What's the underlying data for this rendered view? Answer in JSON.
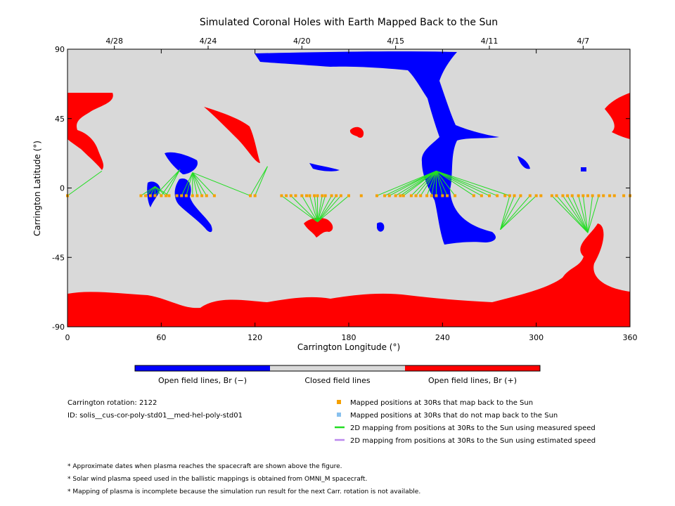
{
  "chart_data": {
    "type": "map",
    "title": "Simulated Coronal Holes with Earth Mapped Back to the Sun",
    "xlabel": "Carrington Longitude (°)",
    "ylabel": "Carrington Latitude (°)",
    "xlim": [
      0,
      360
    ],
    "ylim": [
      -90,
      90
    ],
    "x_ticks": [
      0,
      60,
      120,
      180,
      240,
      300,
      360
    ],
    "y_ticks": [
      90,
      45,
      0,
      -45,
      -90
    ],
    "top_axis_dates": [
      {
        "label": "4/28",
        "lon": 30
      },
      {
        "label": "4/24",
        "lon": 90
      },
      {
        "label": "4/20",
        "lon": 150
      },
      {
        "label": "4/15",
        "lon": 210
      },
      {
        "label": "4/11",
        "lon": 270
      },
      {
        "label": "4/7",
        "lon": 330
      }
    ],
    "colors": {
      "open_negative": "#0000ff",
      "closed": "#d9d9d9",
      "open_positive": "#ff0000",
      "measured_line": "#22dd22",
      "estimated_line": "#bb88ee",
      "mapped_point": "#f5a000",
      "unmapped_point": "#88c0ee"
    },
    "colorbar": {
      "labels": [
        "Open field lines, Br (−)",
        "Closed field lines",
        "Open field lines, Br (+)"
      ]
    },
    "mapped_positions_lon": [
      0,
      47,
      50,
      53,
      56,
      60,
      63,
      65,
      70,
      73,
      76,
      80,
      83,
      86,
      89,
      94,
      117,
      120,
      137,
      140,
      143,
      146,
      150,
      153,
      155,
      158,
      160,
      163,
      165,
      169,
      172,
      175,
      180,
      188,
      198,
      203,
      206,
      210,
      213,
      215,
      220,
      223,
      226,
      230,
      233,
      236,
      240,
      243,
      248,
      260,
      265,
      270,
      275,
      280,
      283,
      286,
      290,
      296,
      300,
      303,
      310,
      313,
      317,
      320,
      323,
      327,
      330,
      333,
      336,
      340,
      343,
      347,
      350,
      356,
      360
    ],
    "mapped_lat": -5,
    "footpoint_groups": [
      {
        "foot": [
          22,
          11
        ],
        "sources": [
          0
        ]
      },
      {
        "foot": [
          56,
          1
        ],
        "sources": [
          47,
          50,
          53,
          56,
          60,
          63,
          65
        ]
      },
      {
        "foot": [
          72,
          12
        ],
        "sources": [
          56,
          60,
          63
        ]
      },
      {
        "foot": [
          80,
          10
        ],
        "sources": [
          73,
          76,
          80,
          83,
          86,
          89,
          94,
          117
        ]
      },
      {
        "foot": [
          128,
          14
        ],
        "sources": [
          117,
          120
        ]
      },
      {
        "foot": [
          160,
          -22
        ],
        "sources": [
          137,
          143,
          150,
          155,
          158,
          160,
          163,
          165,
          169,
          172,
          175,
          180
        ]
      },
      {
        "foot": [
          236,
          11
        ],
        "sources": [
          198,
          203,
          206,
          210,
          213,
          215,
          220,
          223,
          226,
          230,
          233,
          236,
          240,
          243,
          248,
          260,
          265,
          270,
          275,
          283
        ]
      },
      {
        "foot": [
          277,
          -27
        ],
        "sources": [
          283,
          286,
          290,
          296,
          300
        ]
      },
      {
        "foot": [
          333,
          -29
        ],
        "sources": [
          310,
          313,
          317,
          320,
          323,
          327,
          330,
          336,
          340
        ]
      }
    ]
  },
  "colorbar_labels": {
    "neg": "Open field lines, Br (−)",
    "closed": "Closed field lines",
    "pos": "Open field lines, Br (+)"
  },
  "info": {
    "rotation": "Carrington rotation: 2122",
    "id": "ID: solis__cus-cor-poly-std01__med-hel-poly-std01"
  },
  "legend": [
    {
      "label": "Mapped positions at 30Rs that map back to the Sun",
      "marker": "square",
      "color": "#f5a000"
    },
    {
      "label": "Mapped positions at 30Rs that do not map back to the Sun",
      "marker": "square",
      "color": "#88c0ee"
    },
    {
      "label": "2D mapping from positions at 30Rs to the Sun using measured speed",
      "marker": "line",
      "color": "#22dd22"
    },
    {
      "label": "2D mapping from positions at 30Rs to the Sun using estimated speed",
      "marker": "line",
      "color": "#bb88ee"
    }
  ],
  "notes": [
    "* Approximate dates when plasma reaches the spacecraft are shown above the figure.",
    "* Solar wind plasma speed used in the ballistic mappings is obtained from OMNI_M spacecraft.",
    "* Mapping of plasma is incomplete because the simulation run result for the next Carr. rotation is not available."
  ]
}
